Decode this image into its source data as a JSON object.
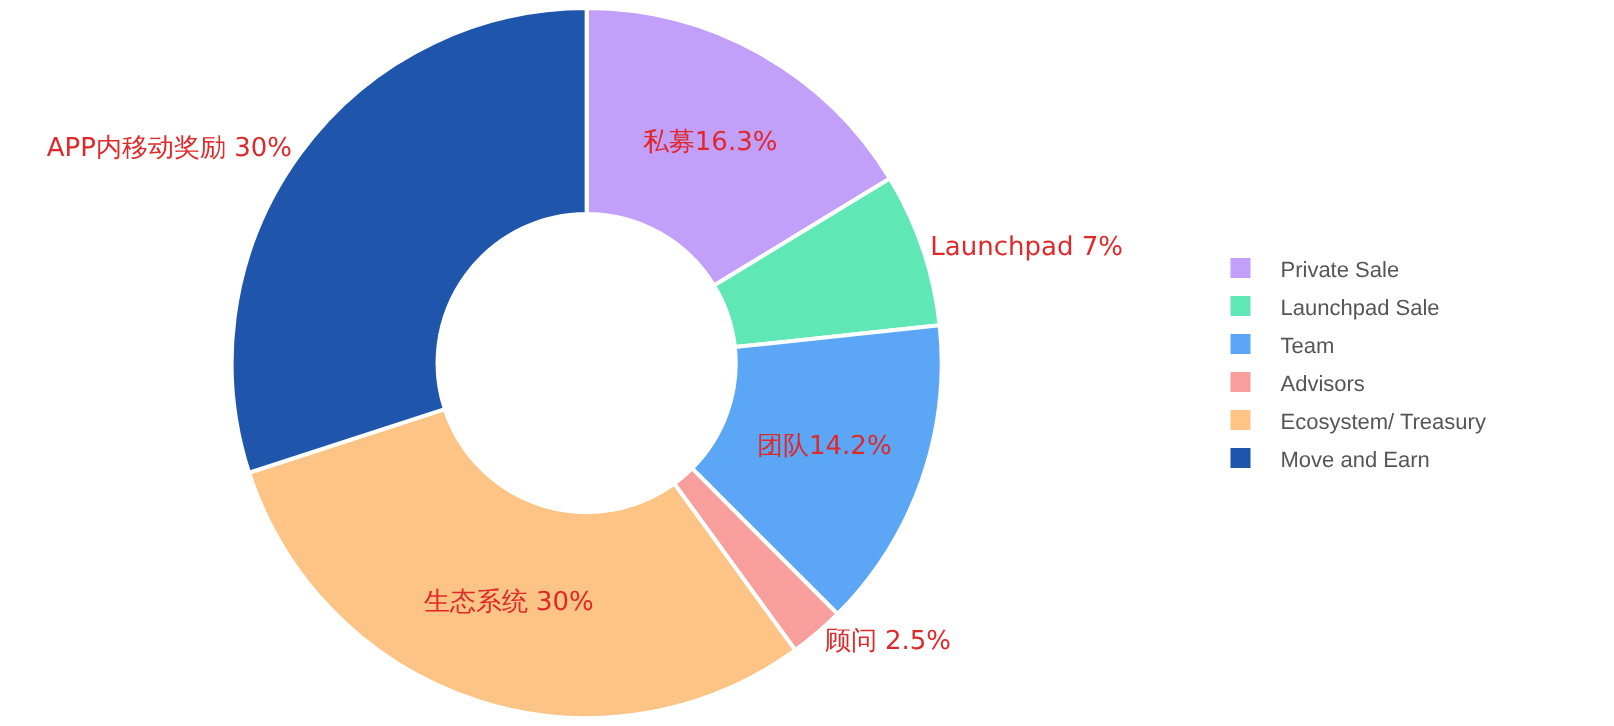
{
  "chart_data": {
    "type": "donut",
    "categories": [
      "Private Sale",
      "Launchpad Sale",
      "Team",
      "Advisors",
      "Ecosystem/ Treasury",
      "Move and Earn"
    ],
    "values": [
      16.3,
      7,
      14.2,
      2.5,
      30,
      30
    ],
    "colors": [
      "#c29ff9",
      "#5fe8b6",
      "#5ba7f5",
      "#f89e9c",
      "#fdc486",
      "#1f55aa"
    ],
    "value_labels": [
      "私募16.3%",
      "Launchpad 7%",
      "团队14.2%",
      "顾问 2.5%",
      "生态系统 30%",
      "APP内移动奖励 30%"
    ],
    "legend": "right"
  }
}
